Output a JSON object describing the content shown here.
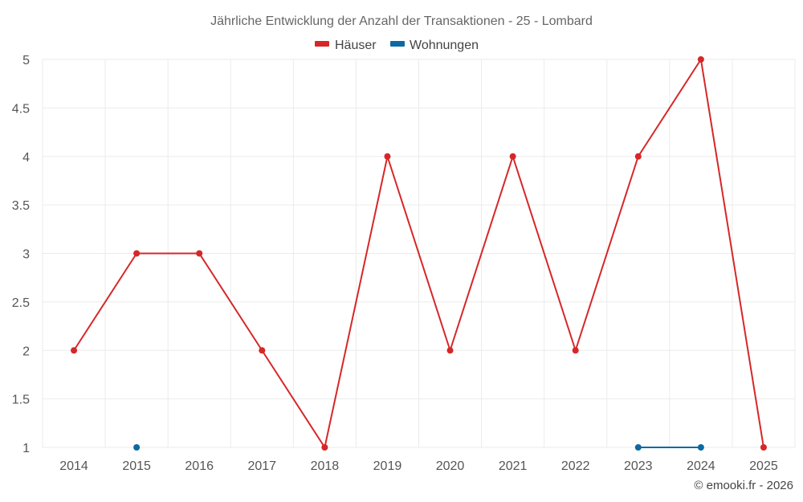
{
  "chart_data": {
    "type": "line",
    "title": "Jährliche Entwicklung der Anzahl der Transaktionen - 25 - Lombard",
    "categories": [
      "2014",
      "2015",
      "2016",
      "2017",
      "2018",
      "2019",
      "2020",
      "2021",
      "2022",
      "2023",
      "2024",
      "2025"
    ],
    "ylim": [
      1,
      5
    ],
    "yticks": [
      1,
      1.5,
      2,
      2.5,
      3,
      3.5,
      4,
      4.5,
      5
    ],
    "ytick_labels": [
      "1",
      "1.5",
      "2",
      "2.5",
      "3",
      "3.5",
      "4",
      "4.5",
      "5"
    ],
    "grid": true,
    "legend_position": "top-center",
    "series": [
      {
        "name": "Häuser",
        "color": "#d62728",
        "values": [
          2,
          3,
          3,
          2,
          1,
          4,
          2,
          4,
          2,
          4,
          5,
          1
        ]
      },
      {
        "name": "Wohnungen",
        "color": "#0b6aa2",
        "values": [
          null,
          1,
          null,
          null,
          null,
          null,
          null,
          null,
          null,
          1,
          1,
          null
        ]
      }
    ]
  },
  "credit": "© emooki.fr - 2026"
}
